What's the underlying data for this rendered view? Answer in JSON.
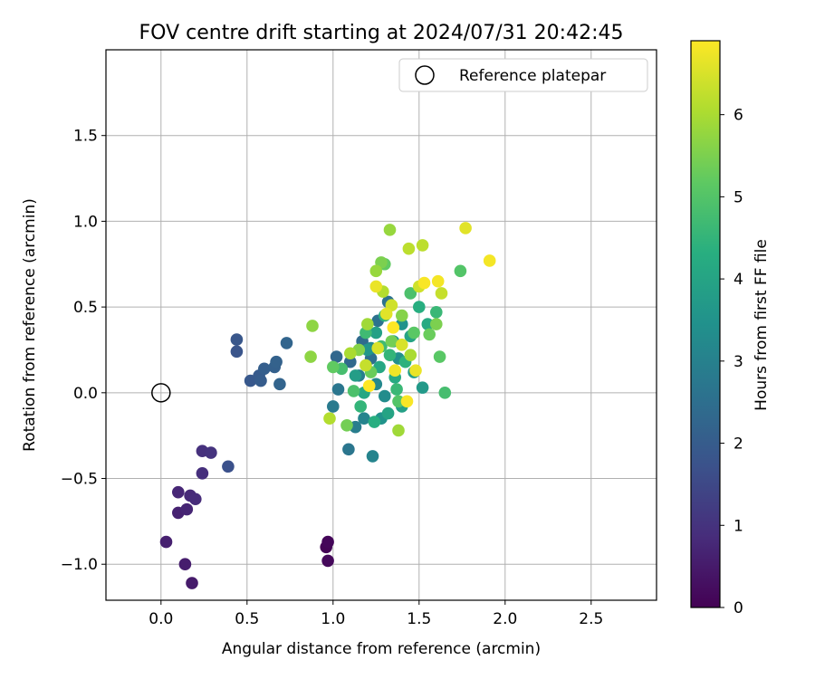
{
  "chart_data": {
    "type": "scatter",
    "title": "FOV centre drift starting at 2024/07/31 20:42:45",
    "xlabel": "Angular distance from reference (arcmin)",
    "ylabel": "Rotation from reference (arcmin)",
    "xlim": [
      -0.32,
      2.88
    ],
    "ylim": [
      -1.21,
      2.0
    ],
    "xticks": [
      0.0,
      0.5,
      1.0,
      1.5,
      2.0,
      2.5
    ],
    "xtick_labels": [
      "0.0",
      "0.5",
      "1.0",
      "1.5",
      "2.0",
      "2.5"
    ],
    "yticks": [
      -1.0,
      -0.5,
      0.0,
      0.5,
      1.0,
      1.5
    ],
    "ytick_labels": [
      "−1.0",
      "−0.5",
      "0.0",
      "0.5",
      "1.0",
      "1.5"
    ],
    "grid": true,
    "legend": {
      "label": "Reference platepar",
      "position": "top-right"
    },
    "reference_point": {
      "x": 0.0,
      "y": 0.0
    },
    "colorbar": {
      "label": "Hours from first FF file",
      "colormap": "viridis",
      "range": [
        0,
        6.9
      ],
      "ticks": [
        0,
        1,
        2,
        3,
        4,
        5,
        6
      ],
      "tick_labels": [
        "0",
        "1",
        "2",
        "3",
        "4",
        "5",
        "6"
      ]
    },
    "points": [
      {
        "x": 0.96,
        "y": -0.9,
        "h": 0.05
      },
      {
        "x": 0.97,
        "y": -0.87,
        "h": 0.1
      },
      {
        "x": 0.97,
        "y": -0.98,
        "h": 0.15
      },
      {
        "x": 0.18,
        "y": -1.11,
        "h": 0.5
      },
      {
        "x": 0.14,
        "y": -1.0,
        "h": 0.55
      },
      {
        "x": 0.03,
        "y": -0.87,
        "h": 0.6
      },
      {
        "x": 0.1,
        "y": -0.7,
        "h": 0.65
      },
      {
        "x": 0.15,
        "y": -0.68,
        "h": 0.7
      },
      {
        "x": 0.1,
        "y": -0.58,
        "h": 0.75
      },
      {
        "x": 0.17,
        "y": -0.6,
        "h": 0.8
      },
      {
        "x": 0.2,
        "y": -0.62,
        "h": 0.85
      },
      {
        "x": 0.24,
        "y": -0.47,
        "h": 0.9
      },
      {
        "x": 0.24,
        "y": -0.34,
        "h": 0.95
      },
      {
        "x": 0.29,
        "y": -0.35,
        "h": 1.0
      },
      {
        "x": 0.39,
        "y": -0.43,
        "h": 1.7
      },
      {
        "x": 0.44,
        "y": 0.24,
        "h": 1.8
      },
      {
        "x": 0.44,
        "y": 0.31,
        "h": 1.85
      },
      {
        "x": 0.52,
        "y": 0.07,
        "h": 1.9
      },
      {
        "x": 0.57,
        "y": 0.1,
        "h": 1.95
      },
      {
        "x": 0.58,
        "y": 0.07,
        "h": 2.0
      },
      {
        "x": 0.6,
        "y": 0.14,
        "h": 2.05
      },
      {
        "x": 0.66,
        "y": 0.15,
        "h": 2.1
      },
      {
        "x": 0.67,
        "y": 0.18,
        "h": 2.15
      },
      {
        "x": 0.69,
        "y": 0.05,
        "h": 2.2
      },
      {
        "x": 0.73,
        "y": 0.29,
        "h": 2.25
      },
      {
        "x": 1.02,
        "y": 0.21,
        "h": 2.3
      },
      {
        "x": 1.1,
        "y": 0.18,
        "h": 2.35
      },
      {
        "x": 1.17,
        "y": 0.3,
        "h": 2.4
      },
      {
        "x": 1.22,
        "y": 0.2,
        "h": 2.5
      },
      {
        "x": 1.32,
        "y": 0.53,
        "h": 2.6
      },
      {
        "x": 1.26,
        "y": 0.42,
        "h": 2.6
      },
      {
        "x": 1.09,
        "y": -0.33,
        "h": 2.7
      },
      {
        "x": 1.03,
        "y": 0.02,
        "h": 2.7
      },
      {
        "x": 1.0,
        "y": -0.08,
        "h": 2.8
      },
      {
        "x": 1.13,
        "y": -0.2,
        "h": 2.9
      },
      {
        "x": 1.15,
        "y": 0.1,
        "h": 2.9
      },
      {
        "x": 1.23,
        "y": -0.37,
        "h": 3.1
      },
      {
        "x": 1.18,
        "y": -0.15,
        "h": 3.1
      },
      {
        "x": 1.22,
        "y": 0.26,
        "h": 3.2
      },
      {
        "x": 1.25,
        "y": 0.05,
        "h": 3.2
      },
      {
        "x": 1.3,
        "y": -0.02,
        "h": 3.3
      },
      {
        "x": 1.38,
        "y": 0.2,
        "h": 3.4
      },
      {
        "x": 1.4,
        "y": 0.4,
        "h": 3.5
      },
      {
        "x": 1.28,
        "y": -0.15,
        "h": 3.5
      },
      {
        "x": 1.2,
        "y": 0.25,
        "h": 3.6
      },
      {
        "x": 1.35,
        "y": 0.3,
        "h": 3.6
      },
      {
        "x": 1.52,
        "y": 0.03,
        "h": 3.7
      },
      {
        "x": 1.47,
        "y": 0.12,
        "h": 3.8
      },
      {
        "x": 1.13,
        "y": 0.1,
        "h": 3.8
      },
      {
        "x": 1.25,
        "y": 0.35,
        "h": 3.9
      },
      {
        "x": 1.4,
        "y": -0.08,
        "h": 3.9
      },
      {
        "x": 1.32,
        "y": -0.12,
        "h": 4.0
      },
      {
        "x": 1.45,
        "y": 0.33,
        "h": 4.0
      },
      {
        "x": 1.18,
        "y": 0.0,
        "h": 4.1
      },
      {
        "x": 1.27,
        "y": 0.15,
        "h": 4.1
      },
      {
        "x": 1.36,
        "y": 0.09,
        "h": 4.2
      },
      {
        "x": 1.55,
        "y": 0.4,
        "h": 4.2
      },
      {
        "x": 1.24,
        "y": -0.17,
        "h": 4.3
      },
      {
        "x": 1.5,
        "y": 0.5,
        "h": 4.3
      },
      {
        "x": 1.3,
        "y": 0.45,
        "h": 4.4
      },
      {
        "x": 1.42,
        "y": 0.18,
        "h": 4.4
      },
      {
        "x": 1.16,
        "y": -0.08,
        "h": 4.5
      },
      {
        "x": 1.33,
        "y": 0.22,
        "h": 4.5
      },
      {
        "x": 1.37,
        "y": 0.02,
        "h": 4.6
      },
      {
        "x": 1.6,
        "y": 0.47,
        "h": 4.6
      },
      {
        "x": 1.19,
        "y": 0.35,
        "h": 4.7
      },
      {
        "x": 1.28,
        "y": 0.27,
        "h": 4.7
      },
      {
        "x": 1.05,
        "y": 0.14,
        "h": 4.8
      },
      {
        "x": 1.65,
        "y": 0.0,
        "h": 4.8
      },
      {
        "x": 1.12,
        "y": 0.01,
        "h": 4.9
      },
      {
        "x": 1.45,
        "y": 0.58,
        "h": 4.9
      },
      {
        "x": 1.38,
        "y": -0.05,
        "h": 5.0
      },
      {
        "x": 1.74,
        "y": 0.71,
        "h": 5.0
      },
      {
        "x": 1.62,
        "y": 0.21,
        "h": 5.1
      },
      {
        "x": 1.47,
        "y": 0.35,
        "h": 5.1
      },
      {
        "x": 1.0,
        "y": 0.15,
        "h": 5.2
      },
      {
        "x": 1.3,
        "y": 0.75,
        "h": 5.2
      },
      {
        "x": 1.56,
        "y": 0.34,
        "h": 5.3
      },
      {
        "x": 1.22,
        "y": 0.12,
        "h": 5.3
      },
      {
        "x": 1.08,
        "y": -0.19,
        "h": 5.4
      },
      {
        "x": 1.34,
        "y": 0.3,
        "h": 5.4
      },
      {
        "x": 1.6,
        "y": 0.4,
        "h": 5.5
      },
      {
        "x": 1.28,
        "y": 0.76,
        "h": 5.5
      },
      {
        "x": 1.4,
        "y": 0.45,
        "h": 5.6
      },
      {
        "x": 1.15,
        "y": 0.25,
        "h": 5.6
      },
      {
        "x": 0.88,
        "y": 0.39,
        "h": 5.7
      },
      {
        "x": 0.87,
        "y": 0.21,
        "h": 5.7
      },
      {
        "x": 1.33,
        "y": 0.95,
        "h": 5.8
      },
      {
        "x": 1.25,
        "y": 0.71,
        "h": 5.8
      },
      {
        "x": 1.38,
        "y": -0.22,
        "h": 5.9
      },
      {
        "x": 1.2,
        "y": 0.4,
        "h": 5.9
      },
      {
        "x": 1.1,
        "y": 0.23,
        "h": 6.0
      },
      {
        "x": 1.45,
        "y": 0.22,
        "h": 6.0
      },
      {
        "x": 1.29,
        "y": 0.59,
        "h": 6.1
      },
      {
        "x": 0.98,
        "y": -0.15,
        "h": 6.1
      },
      {
        "x": 1.52,
        "y": 0.86,
        "h": 6.2
      },
      {
        "x": 1.44,
        "y": 0.84,
        "h": 6.2
      },
      {
        "x": 1.63,
        "y": 0.58,
        "h": 6.3
      },
      {
        "x": 1.19,
        "y": 0.16,
        "h": 6.3
      },
      {
        "x": 1.34,
        "y": 0.51,
        "h": 6.4
      },
      {
        "x": 1.5,
        "y": 0.62,
        "h": 6.4
      },
      {
        "x": 1.26,
        "y": 0.26,
        "h": 6.5
      },
      {
        "x": 1.4,
        "y": 0.28,
        "h": 6.5
      },
      {
        "x": 1.77,
        "y": 0.96,
        "h": 6.6
      },
      {
        "x": 1.31,
        "y": 0.46,
        "h": 6.6
      },
      {
        "x": 1.48,
        "y": 0.13,
        "h": 6.7
      },
      {
        "x": 1.25,
        "y": 0.62,
        "h": 6.7
      },
      {
        "x": 1.36,
        "y": 0.13,
        "h": 6.75
      },
      {
        "x": 1.61,
        "y": 0.65,
        "h": 6.8
      },
      {
        "x": 1.91,
        "y": 0.77,
        "h": 6.8
      },
      {
        "x": 1.43,
        "y": -0.05,
        "h": 6.85
      },
      {
        "x": 1.53,
        "y": 0.64,
        "h": 6.85
      },
      {
        "x": 1.21,
        "y": 0.04,
        "h": 6.9
      },
      {
        "x": 1.35,
        "y": 0.38,
        "h": 6.9
      }
    ]
  }
}
